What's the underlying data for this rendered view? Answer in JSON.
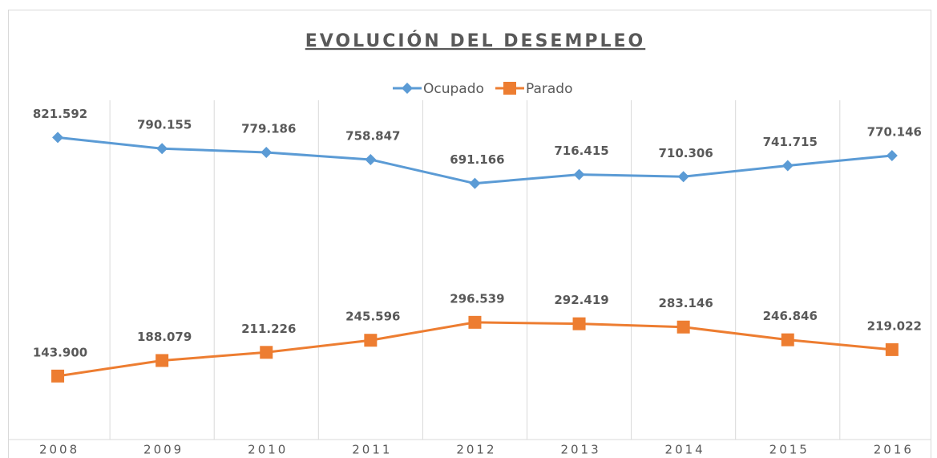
{
  "chart_data": {
    "type": "line",
    "title": "EVOLUCIÓN DEL DESEMPLEO",
    "categories": [
      "2008",
      "2009",
      "2010",
      "2011",
      "2012",
      "2013",
      "2014",
      "2015",
      "2016"
    ],
    "ylim": [
      0,
      900000
    ],
    "series": [
      {
        "name": "Ocupado",
        "color": "#5b9bd5",
        "marker": "diamond",
        "values": [
          821592,
          790155,
          779186,
          758847,
          691166,
          716415,
          710306,
          741715,
          770146
        ],
        "value_labels": [
          "821.592",
          "790.155",
          "779.186",
          "758.847",
          "691.166",
          "716.415",
          "710.306",
          "741.715",
          "770.146"
        ]
      },
      {
        "name": "Parado",
        "color": "#ed7d31",
        "marker": "square",
        "values": [
          143900,
          188079,
          211226,
          245596,
          296539,
          292419,
          283146,
          246846,
          219022
        ],
        "value_labels": [
          "143.900",
          "188.079",
          "211.226",
          "245.596",
          "296.539",
          "292.419",
          "283.146",
          "246.846",
          "219.022"
        ]
      }
    ],
    "legend": "top",
    "grid": "vertical"
  }
}
